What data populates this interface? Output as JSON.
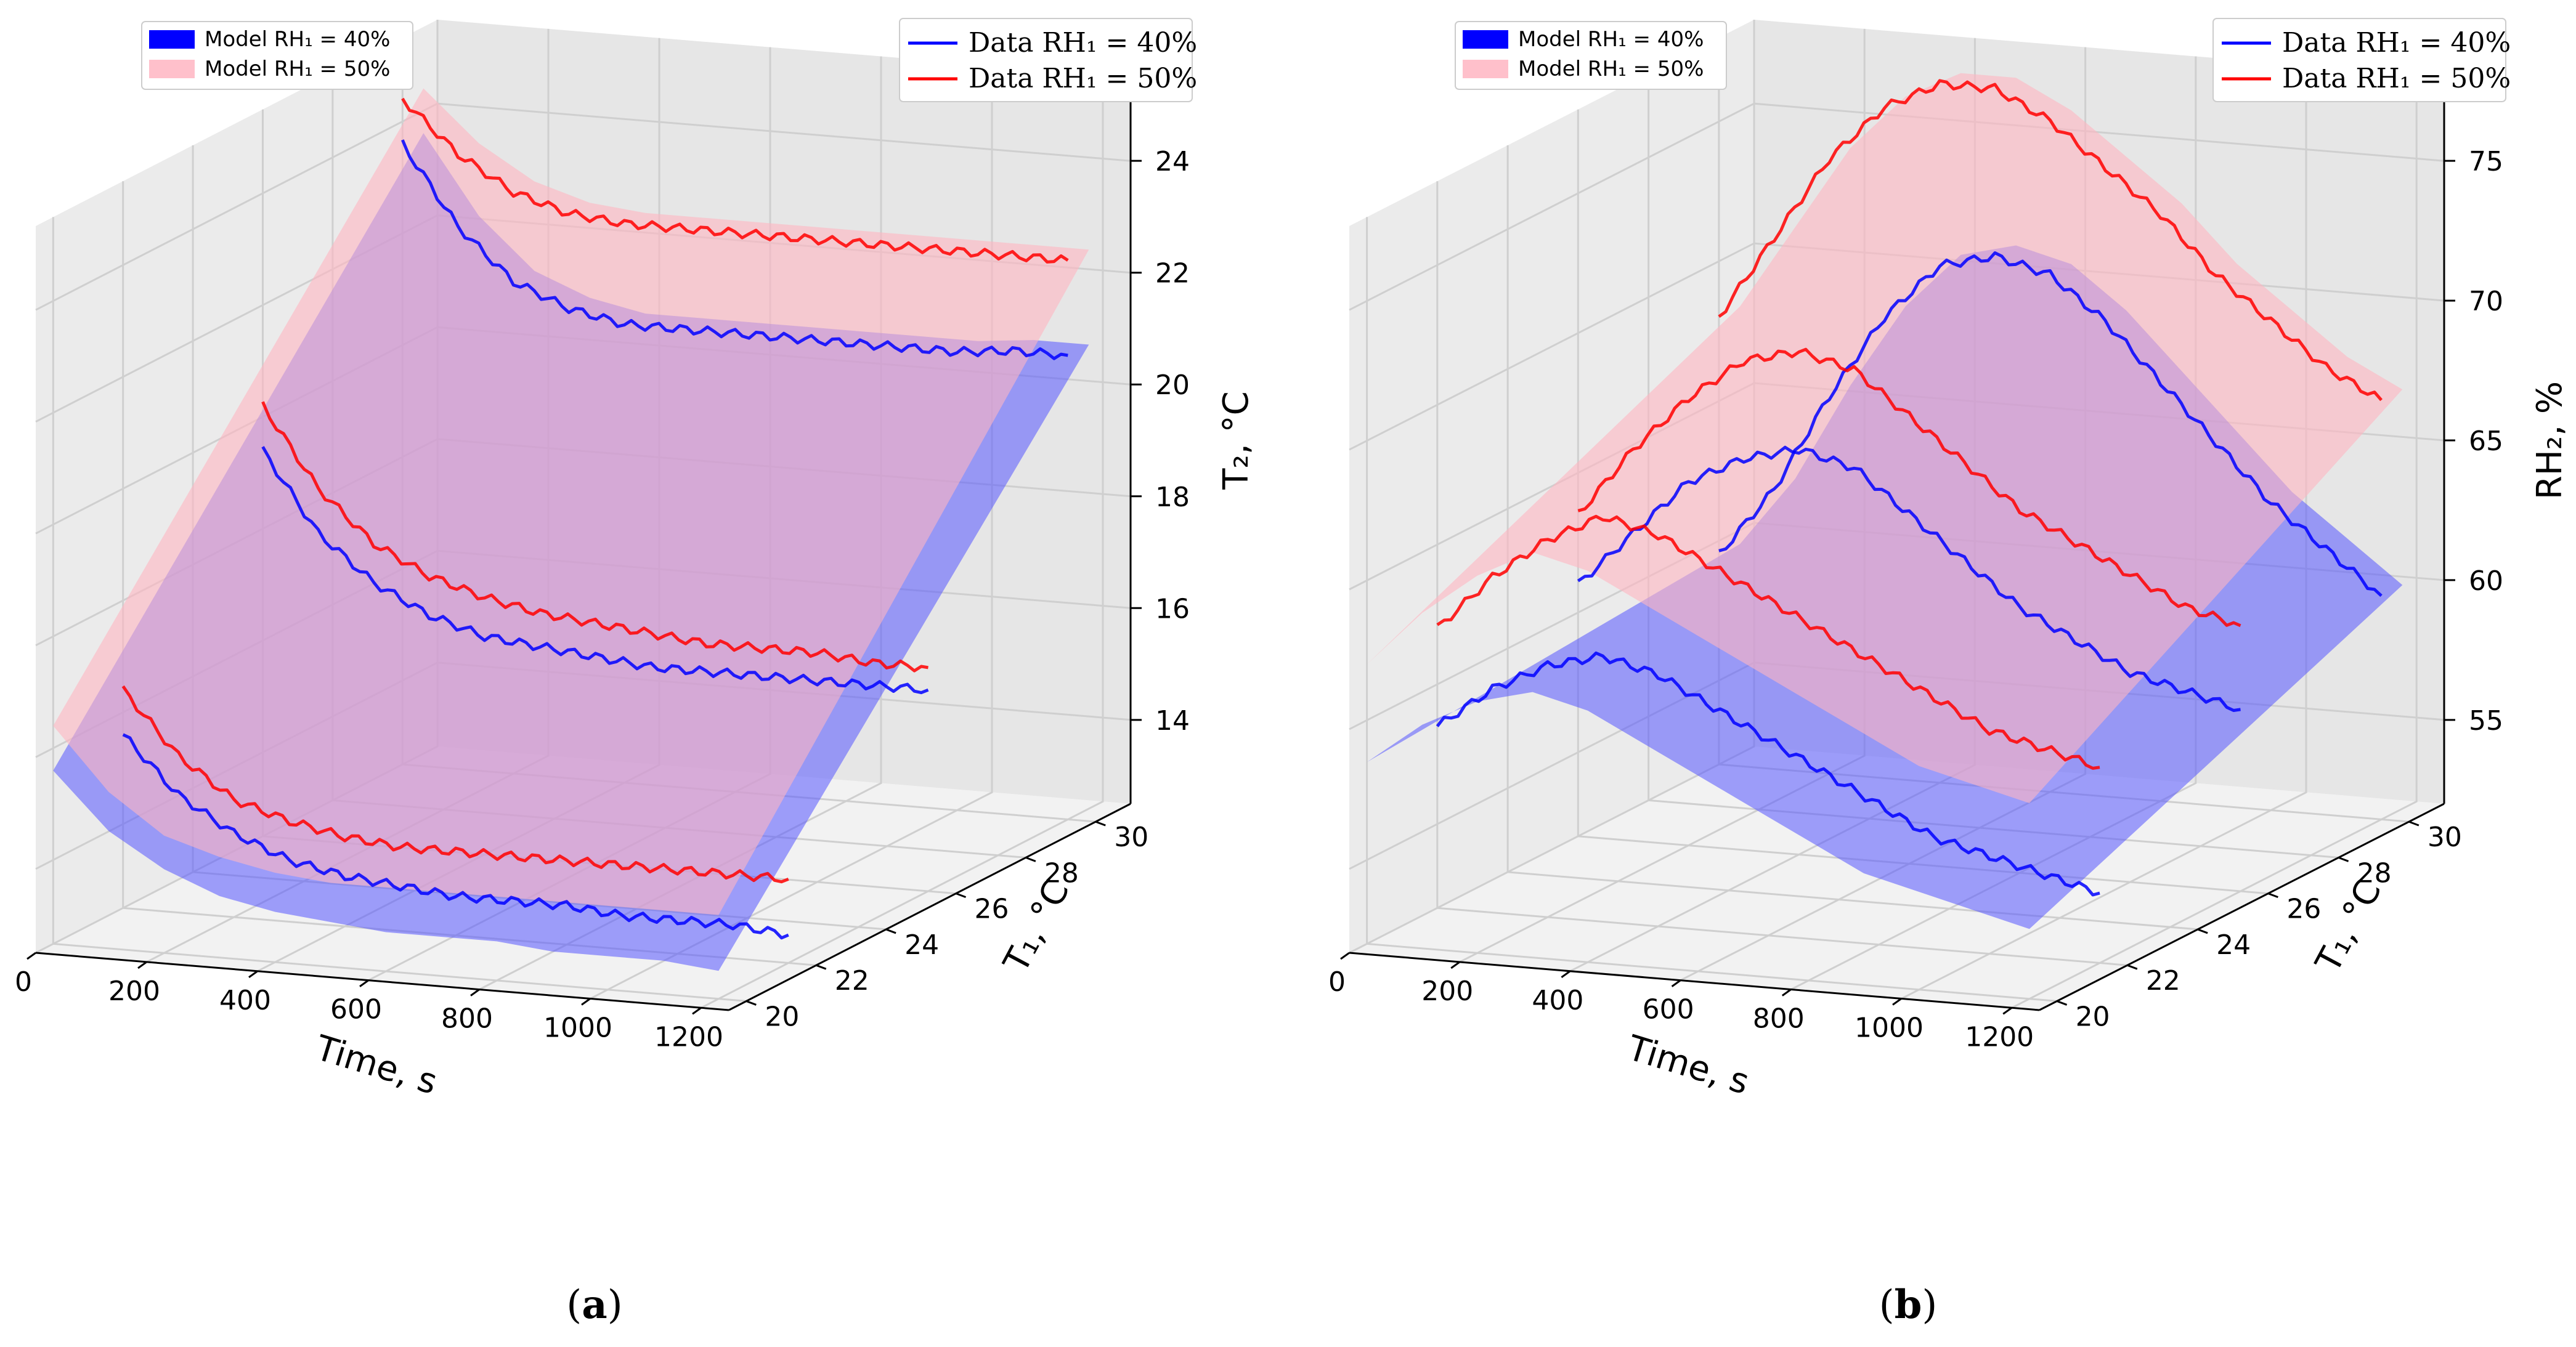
{
  "chart_data": [
    {
      "type": "surface3d",
      "panel": "(a)",
      "caption_letter": "a",
      "xlabel": "Time, s",
      "ylabel": "T₁, °C",
      "zlabel": "T₂, °C",
      "x_ticks": [
        "0",
        "200",
        "400",
        "600",
        "800",
        "1000",
        "1200"
      ],
      "y_ticks": [
        "20",
        "22",
        "24",
        "26",
        "28",
        "30"
      ],
      "z_ticks": [
        "14",
        "16",
        "18",
        "20",
        "22",
        "24"
      ],
      "xlim": [
        0,
        1250
      ],
      "ylim": [
        19.5,
        31
      ],
      "zlim": [
        12.5,
        25.5
      ],
      "legend_model": [
        {
          "label": "Model RH₁ = 40%",
          "color": "#0000ff"
        },
        {
          "label": "Model RH₁ = 50%",
          "color": "#ffc0cb"
        }
      ],
      "legend_data": [
        {
          "label": "Data RH₁ = 40%",
          "color": "#0000ff"
        },
        {
          "label": "Data RH₁ = 50%",
          "color": "#ff0000"
        }
      ],
      "series": [
        {
          "name": "Data RH₁ = 40%",
          "color": "#0000ff",
          "lines": [
            {
              "T1": 22,
              "points": [
                [
                  0,
                  15.6
                ],
                [
                  100,
                  14.6
                ],
                [
                  200,
                  14.0
                ],
                [
                  300,
                  13.6
                ],
                [
                  400,
                  13.4
                ],
                [
                  500,
                  13.3
                ],
                [
                  600,
                  13.2
                ],
                [
                  700,
                  13.2
                ],
                [
                  800,
                  13.2
                ],
                [
                  900,
                  13.1
                ],
                [
                  1000,
                  13.1
                ],
                [
                  1100,
                  13.1
                ],
                [
                  1200,
                  13.0
                ]
              ]
            },
            {
              "T1": 26,
              "points": [
                [
                  0,
                  19.4
                ],
                [
                  100,
                  18.0
                ],
                [
                  200,
                  17.2
                ],
                [
                  300,
                  16.7
                ],
                [
                  400,
                  16.4
                ],
                [
                  500,
                  16.3
                ],
                [
                  600,
                  16.2
                ],
                [
                  700,
                  16.1
                ],
                [
                  800,
                  16.1
                ],
                [
                  900,
                  16.1
                ],
                [
                  1000,
                  16.1
                ],
                [
                  1100,
                  16.1
                ],
                [
                  1200,
                  16.1
                ]
              ]
            },
            {
              "T1": 30,
              "points": [
                [
                  0,
                  23.6
                ],
                [
                  100,
                  22.2
                ],
                [
                  200,
                  21.3
                ],
                [
                  300,
                  20.9
                ],
                [
                  400,
                  20.7
                ],
                [
                  500,
                  20.7
                ],
                [
                  600,
                  20.7
                ],
                [
                  700,
                  20.7
                ],
                [
                  800,
                  20.7
                ],
                [
                  900,
                  20.7
                ],
                [
                  1000,
                  20.7
                ],
                [
                  1100,
                  20.8
                ],
                [
                  1200,
                  20.8
                ]
              ]
            }
          ]
        },
        {
          "name": "Data RH₁ = 50%",
          "color": "#ff0000",
          "lines": [
            {
              "T1": 22,
              "points": [
                [
                  0,
                  16.4
                ],
                [
                  100,
                  15.3
                ],
                [
                  200,
                  14.6
                ],
                [
                  300,
                  14.3
                ],
                [
                  400,
                  14.1
                ],
                [
                  500,
                  14.0
                ],
                [
                  600,
                  14.0
                ],
                [
                  700,
                  14.0
                ],
                [
                  800,
                  14.0
                ],
                [
                  900,
                  14.0
                ],
                [
                  1000,
                  14.0
                ],
                [
                  1100,
                  14.0
                ],
                [
                  1200,
                  14.0
                ]
              ]
            },
            {
              "T1": 26,
              "points": [
                [
                  0,
                  20.2
                ],
                [
                  100,
                  18.8
                ],
                [
                  200,
                  17.9
                ],
                [
                  300,
                  17.4
                ],
                [
                  400,
                  17.1
                ],
                [
                  500,
                  16.9
                ],
                [
                  600,
                  16.8
                ],
                [
                  700,
                  16.7
                ],
                [
                  800,
                  16.6
                ],
                [
                  900,
                  16.6
                ],
                [
                  1000,
                  16.6
                ],
                [
                  1100,
                  16.5
                ],
                [
                  1200,
                  16.5
                ]
              ]
            },
            {
              "T1": 30,
              "points": [
                [
                  0,
                  24.4
                ],
                [
                  100,
                  23.5
                ],
                [
                  200,
                  22.9
                ],
                [
                  300,
                  22.6
                ],
                [
                  400,
                  22.5
                ],
                [
                  500,
                  22.5
                ],
                [
                  600,
                  22.5
                ],
                [
                  700,
                  22.5
                ],
                [
                  800,
                  22.5
                ],
                [
                  900,
                  22.5
                ],
                [
                  1000,
                  22.5
                ],
                [
                  1100,
                  22.5
                ],
                [
                  1200,
                  22.5
                ]
              ]
            }
          ]
        }
      ]
    },
    {
      "type": "surface3d",
      "panel": "(b)",
      "caption_letter": "b",
      "xlabel": "Time, s",
      "ylabel": "T₁, °C",
      "zlabel": "RH₂, %",
      "x_ticks": [
        "0",
        "200",
        "400",
        "600",
        "800",
        "1000",
        "1200"
      ],
      "y_ticks": [
        "20",
        "22",
        "24",
        "26",
        "28",
        "30"
      ],
      "z_ticks": [
        "55",
        "60",
        "65",
        "70",
        "75"
      ],
      "xlim": [
        0,
        1250
      ],
      "ylim": [
        19.5,
        31
      ],
      "zlim": [
        52,
        78
      ],
      "legend_model": [
        {
          "label": "Model RH₁ = 40%",
          "color": "#0000ff"
        },
        {
          "label": "Model RH₁ = 50%",
          "color": "#ffc0cb"
        }
      ],
      "legend_data": [
        {
          "label": "Data RH₁ = 40%",
          "color": "#0000ff"
        },
        {
          "label": "Data RH₁ = 50%",
          "color": "#ff0000"
        }
      ],
      "series": [
        {
          "name": "Data RH₁ = 40%",
          "color": "#0000ff",
          "lines": [
            {
              "T1": 22,
              "points": [
                [
                  0,
                  58.5
                ],
                [
                  100,
                  60.0
                ],
                [
                  200,
                  61.0
                ],
                [
                  300,
                  61.5
                ],
                [
                  400,
                  61.0
                ],
                [
                  500,
                  60.0
                ],
                [
                  600,
                  59.0
                ],
                [
                  700,
                  58.0
                ],
                [
                  800,
                  57.0
                ],
                [
                  900,
                  56.0
                ],
                [
                  1000,
                  55.5
                ],
                [
                  1100,
                  55.0
                ],
                [
                  1200,
                  54.5
                ]
              ]
            },
            {
              "T1": 26,
              "points": [
                [
                  0,
                  61.0
                ],
                [
                  100,
                  63.0
                ],
                [
                  200,
                  65.0
                ],
                [
                  300,
                  66.0
                ],
                [
                  400,
                  66.5
                ],
                [
                  500,
                  66.0
                ],
                [
                  600,
                  64.5
                ],
                [
                  700,
                  63.0
                ],
                [
                  800,
                  61.5
                ],
                [
                  900,
                  60.5
                ],
                [
                  1000,
                  59.5
                ],
                [
                  1100,
                  59.0
                ],
                [
                  1200,
                  58.5
                ]
              ]
            },
            {
              "T1": 30,
              "points": [
                [
                  0,
                  59.5
                ],
                [
                  100,
                  62.0
                ],
                [
                  200,
                  65.5
                ],
                [
                  300,
                  68.5
                ],
                [
                  400,
                  70.5
                ],
                [
                  500,
                  71.0
                ],
                [
                  600,
                  70.5
                ],
                [
                  700,
                  69.0
                ],
                [
                  800,
                  67.0
                ],
                [
                  900,
                  65.0
                ],
                [
                  1000,
                  63.0
                ],
                [
                  1100,
                  61.5
                ],
                [
                  1200,
                  60.0
                ]
              ]
            }
          ]
        },
        {
          "name": "Data RH₁ = 50%",
          "color": "#ff0000",
          "lines": [
            {
              "T1": 22,
              "points": [
                [
                  0,
                  62.0
                ],
                [
                  100,
                  64.0
                ],
                [
                  200,
                  65.5
                ],
                [
                  300,
                  66.5
                ],
                [
                  400,
                  66.0
                ],
                [
                  500,
                  65.0
                ],
                [
                  600,
                  64.0
                ],
                [
                  700,
                  63.0
                ],
                [
                  800,
                  62.0
                ],
                [
                  900,
                  61.0
                ],
                [
                  1000,
                  60.0
                ],
                [
                  1100,
                  59.5
                ],
                [
                  1200,
                  59.0
                ]
              ]
            },
            {
              "T1": 26,
              "points": [
                [
                  0,
                  63.5
                ],
                [
                  100,
                  66.0
                ],
                [
                  200,
                  68.0
                ],
                [
                  300,
                  69.5
                ],
                [
                  400,
                  70.0
                ],
                [
                  500,
                  69.5
                ],
                [
                  600,
                  68.0
                ],
                [
                  700,
                  66.5
                ],
                [
                  800,
                  65.0
                ],
                [
                  900,
                  64.0
                ],
                [
                  1000,
                  63.0
                ],
                [
                  1100,
                  62.0
                ],
                [
                  1200,
                  61.5
                ]
              ]
            },
            {
              "T1": 30,
              "points": [
                [
                  0,
                  68.0
                ],
                [
                  100,
                  71.0
                ],
                [
                  200,
                  74.0
                ],
                [
                  300,
                  76.0
                ],
                [
                  400,
                  77.0
                ],
                [
                  500,
                  77.0
                ],
                [
                  600,
                  76.0
                ],
                [
                  700,
                  74.5
                ],
                [
                  800,
                  73.0
                ],
                [
                  900,
                  71.0
                ],
                [
                  1000,
                  69.5
                ],
                [
                  1100,
                  68.0
                ],
                [
                  1200,
                  67.0
                ]
              ]
            }
          ]
        }
      ]
    }
  ]
}
